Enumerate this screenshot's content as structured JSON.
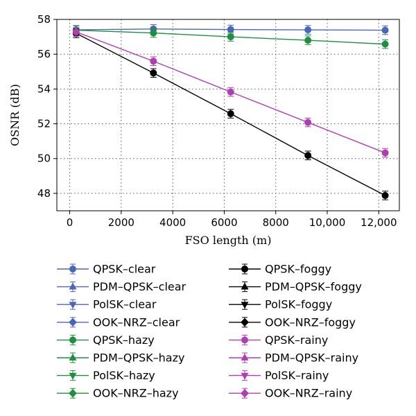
{
  "chart_data": {
    "type": "line",
    "xlabel": "FSO length (m)",
    "ylabel": "OSNR (dB)",
    "xlim": [
      -500,
      12800
    ],
    "ylim": [
      47,
      58
    ],
    "x_ticks": [
      0,
      2000,
      4000,
      6000,
      8000,
      10000,
      12000
    ],
    "x_tick_labels": [
      "0",
      "2000",
      "4000",
      "6000",
      "8000",
      "10,000",
      "12,000"
    ],
    "y_ticks": [
      48,
      50,
      52,
      54,
      56,
      58
    ],
    "y_tick_labels": [
      "48",
      "50",
      "52",
      "54",
      "56",
      "58"
    ],
    "grid": "dotted",
    "legend_position": "bottom",
    "x": [
      250,
      3250,
      6250,
      9250,
      12250
    ],
    "series": [
      {
        "name": "QPSK–clear",
        "color": "#4a66b8",
        "marker": "circle",
        "values": [
          57.4,
          57.45,
          57.42,
          57.4,
          57.38
        ],
        "err": 0.25,
        "draw": true
      },
      {
        "name": "PDM–QPSK–clear",
        "color": "#4a66b8",
        "marker": "triangle-up",
        "values": [
          57.4,
          57.45,
          57.42,
          57.4,
          57.38
        ],
        "err": 0.25,
        "draw": false
      },
      {
        "name": "PolSK–clear",
        "color": "#4a66b8",
        "marker": "triangle-down",
        "values": [
          57.4,
          57.45,
          57.42,
          57.4,
          57.38
        ],
        "err": 0.25,
        "draw": false
      },
      {
        "name": "OOK–NRZ–clear",
        "color": "#4a66b8",
        "marker": "diamond",
        "values": [
          57.4,
          57.45,
          57.42,
          57.4,
          57.38
        ],
        "err": 0.25,
        "draw": false
      },
      {
        "name": "QPSK–hazy",
        "color": "#1e8f3e",
        "marker": "circle",
        "values": [
          57.38,
          57.22,
          57.0,
          56.8,
          56.58
        ],
        "err": 0.25,
        "draw": true
      },
      {
        "name": "PDM–QPSK–hazy",
        "color": "#1e8f3e",
        "marker": "triangle-up",
        "values": [
          57.38,
          57.22,
          57.0,
          56.8,
          56.58
        ],
        "err": 0.25,
        "draw": false
      },
      {
        "name": "PolSK–hazy",
        "color": "#1e8f3e",
        "marker": "triangle-down",
        "values": [
          57.38,
          57.22,
          57.0,
          56.8,
          56.58
        ],
        "err": 0.25,
        "draw": false
      },
      {
        "name": "OOK–NRZ–hazy",
        "color": "#1e8f3e",
        "marker": "diamond",
        "values": [
          57.38,
          57.22,
          57.0,
          56.8,
          56.58
        ],
        "err": 0.25,
        "draw": false
      },
      {
        "name": "QPSK–foggy",
        "color": "#000000",
        "marker": "circle",
        "values": [
          57.2,
          54.92,
          52.58,
          50.18,
          47.88
        ],
        "err": 0.25,
        "draw": true
      },
      {
        "name": "PDM–QPSK–foggy",
        "color": "#000000",
        "marker": "triangle-up",
        "values": [
          57.2,
          54.92,
          52.58,
          50.18,
          47.88
        ],
        "err": 0.25,
        "draw": false
      },
      {
        "name": "PolSK–foggy",
        "color": "#000000",
        "marker": "triangle-down",
        "values": [
          57.2,
          54.92,
          52.58,
          50.18,
          47.88
        ],
        "err": 0.25,
        "draw": false
      },
      {
        "name": "OOK–NRZ–foggy",
        "color": "#000000",
        "marker": "diamond",
        "values": [
          57.2,
          54.92,
          52.58,
          50.18,
          47.88
        ],
        "err": 0.25,
        "draw": false
      },
      {
        "name": "QPSK–rainy",
        "color": "#b23cb2",
        "marker": "circle",
        "values": [
          57.28,
          55.6,
          53.83,
          52.08,
          50.33
        ],
        "err": 0.25,
        "draw": true
      },
      {
        "name": "PDM–QPSK–rainy",
        "color": "#b23cb2",
        "marker": "triangle-up",
        "values": [
          57.28,
          55.6,
          53.83,
          52.08,
          50.33
        ],
        "err": 0.25,
        "draw": false
      },
      {
        "name": "PolSK–rainy",
        "color": "#b23cb2",
        "marker": "triangle-down",
        "values": [
          57.28,
          55.6,
          53.83,
          52.08,
          50.33
        ],
        "err": 0.25,
        "draw": false
      },
      {
        "name": "OOK–NRZ–rainy",
        "color": "#b23cb2",
        "marker": "diamond",
        "values": [
          57.28,
          55.6,
          53.83,
          52.08,
          50.33
        ],
        "err": 0.25,
        "draw": false
      }
    ]
  }
}
